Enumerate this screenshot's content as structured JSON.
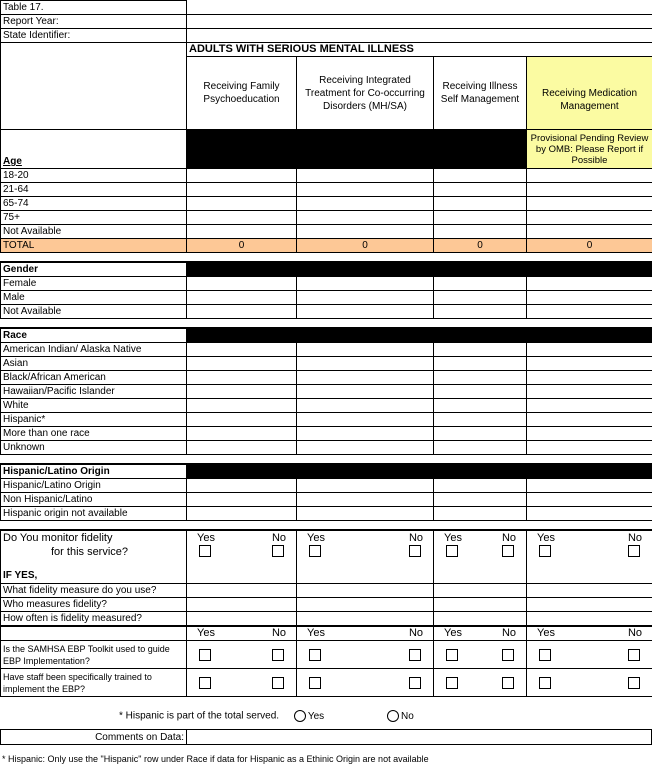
{
  "header": {
    "table_label": "Table 17.",
    "report_year_label": "Report Year:",
    "state_identifier_label": "State Identifier:"
  },
  "section_title": "ADULTS WITH SERIOUS MENTAL ILLNESS",
  "columns": [
    "Receiving Family Psychoeducation",
    "Receiving Integrated Treatment for Co-occurring Disorders (MH/SA)",
    "Receiving Illness Self Management",
    "Receiving Medication Management"
  ],
  "provisional_note": "Provisional Pending Review by OMB: Please Report if Possible",
  "colors": {
    "total_row": "#fdc896",
    "provisional": "#fbfba2"
  },
  "age": {
    "title": "Age",
    "rows": [
      "18-20",
      "21-64",
      "65-74",
      "75+",
      "Not Available"
    ]
  },
  "total": {
    "label": "TOTAL",
    "values": [
      "0",
      "0",
      "0",
      "0"
    ]
  },
  "gender": {
    "title": "Gender",
    "rows": [
      "Female",
      "Male",
      "Not Available"
    ]
  },
  "race": {
    "title": "Race",
    "rows": [
      "American Indian/ Alaska Native",
      "Asian",
      "Black/African American",
      "Hawaiian/Pacific Islander",
      "White",
      "Hispanic*",
      "More than one race",
      "Unknown"
    ]
  },
  "hispanic": {
    "title": "Hispanic/Latino Origin",
    "rows": [
      "Hispanic/Latino Origin",
      "Non Hispanic/Latino",
      "Hispanic origin not available"
    ]
  },
  "fidelity": {
    "question_line1": "Do You monitor fidelity",
    "question_line2": "for this service?",
    "if_yes": "IF YES,",
    "yes": "Yes",
    "no": "No",
    "followups": [
      "What fidelity measure do you use?",
      "Who measures fidelity?",
      "How often is fidelity measured?"
    ]
  },
  "ebp": {
    "yes": "Yes",
    "no": "No",
    "questions": [
      "Is the SAMHSA EBP Toolkit used to guide EBP Implementation?",
      "Have staff been specifically trained to implement the EBP?"
    ]
  },
  "hispanic_note": {
    "text": "* Hispanic is part of the total served.",
    "yes": "Yes",
    "no": "No"
  },
  "comments_label": "Comments on Data:",
  "footnote": "* Hispanic:  Only use the \"Hispanic\" row under Race if data for Hispanic as a Ethinic Origin are not available"
}
